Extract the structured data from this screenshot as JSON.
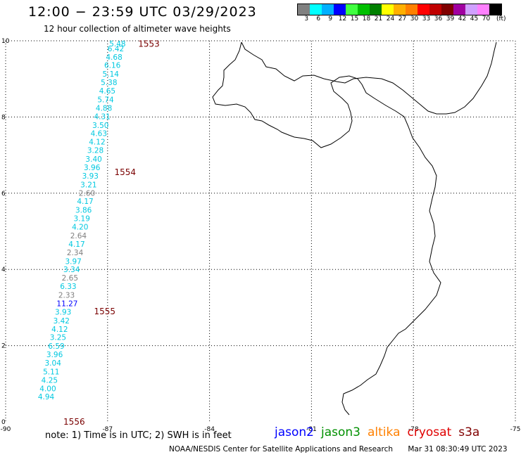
{
  "title": "12:00 − 23:59 UTC 03/29/2023",
  "subtitle": "12 hour collection of altimeter wave heights",
  "colorbar": {
    "colors": [
      "#808080",
      "#00ffff",
      "#00b0ff",
      "#0000ff",
      "#40ff40",
      "#00c000",
      "#008000",
      "#ffff00",
      "#ffb000",
      "#ff8000",
      "#ff0000",
      "#c00000",
      "#800000",
      "#a000a0",
      "#d0a0ff",
      "#ff80ff",
      "#000000"
    ],
    "labels": [
      "3",
      "6",
      "9",
      "12",
      "15",
      "18",
      "21",
      "24",
      "27",
      "30",
      "33",
      "36",
      "39",
      "42",
      "45",
      "70"
    ],
    "unit": "(ft)"
  },
  "axes": {
    "x_ticks": [
      -90,
      -87,
      -84,
      -81,
      -78,
      -75
    ],
    "y_ticks": [
      0,
      2,
      4,
      6,
      8,
      10
    ]
  },
  "passes": [
    {
      "id": "1553",
      "lon": -86.1,
      "lat": 9.92
    },
    {
      "id": "1554",
      "lon": -86.8,
      "lat": 6.55
    },
    {
      "id": "1555",
      "lon": -87.4,
      "lat": 2.9
    },
    {
      "id": "1556",
      "lon": -88.3,
      "lat": 0.0
    }
  ],
  "swh_points": [
    {
      "v": "5.48",
      "lon": -86.95,
      "lat": 9.93,
      "c": "#00c8e0"
    },
    {
      "v": "6.42",
      "lon": -87.0,
      "lat": 9.8,
      "c": "#00c8e0"
    },
    {
      "v": "4.68",
      "lon": -87.05,
      "lat": 9.58,
      "c": "#00c8e0"
    },
    {
      "v": "6.16",
      "lon": -87.1,
      "lat": 9.36,
      "c": "#00c8e0"
    },
    {
      "v": "5.14",
      "lon": -87.15,
      "lat": 9.13,
      "c": "#00c8e0"
    },
    {
      "v": "5.38",
      "lon": -87.2,
      "lat": 8.91,
      "c": "#00c8e0"
    },
    {
      "v": "4.65",
      "lon": -87.25,
      "lat": 8.69,
      "c": "#00c8e0"
    },
    {
      "v": "5.74",
      "lon": -87.3,
      "lat": 8.46,
      "c": "#00c8e0"
    },
    {
      "v": "4.88",
      "lon": -87.35,
      "lat": 8.24,
      "c": "#00c8e0"
    },
    {
      "v": "4.31",
      "lon": -87.4,
      "lat": 8.02,
      "c": "#00c8e0"
    },
    {
      "v": "3.50",
      "lon": -87.45,
      "lat": 7.79,
      "c": "#00c8e0"
    },
    {
      "v": "4.63",
      "lon": -87.5,
      "lat": 7.57,
      "c": "#00c8e0"
    },
    {
      "v": "4.12",
      "lon": -87.55,
      "lat": 7.35,
      "c": "#00c8e0"
    },
    {
      "v": "3.28",
      "lon": -87.6,
      "lat": 7.13,
      "c": "#00c8e0"
    },
    {
      "v": "3.40",
      "lon": -87.65,
      "lat": 6.9,
      "c": "#00c8e0"
    },
    {
      "v": "3.96",
      "lon": -87.7,
      "lat": 6.68,
      "c": "#00c8e0"
    },
    {
      "v": "3.93",
      "lon": -87.75,
      "lat": 6.46,
      "c": "#00c8e0"
    },
    {
      "v": "3.21",
      "lon": -87.8,
      "lat": 6.23,
      "c": "#00c8e0"
    },
    {
      "v": "2.60",
      "lon": -87.85,
      "lat": 6.01,
      "c": "#808080"
    },
    {
      "v": "4.17",
      "lon": -87.9,
      "lat": 5.79,
      "c": "#00c8e0"
    },
    {
      "v": "3.86",
      "lon": -87.95,
      "lat": 5.56,
      "c": "#00c8e0"
    },
    {
      "v": "3.19",
      "lon": -88.0,
      "lat": 5.34,
      "c": "#00c8e0"
    },
    {
      "v": "4.20",
      "lon": -88.05,
      "lat": 5.12,
      "c": "#00c8e0"
    },
    {
      "v": "2.64",
      "lon": -88.1,
      "lat": 4.89,
      "c": "#808080"
    },
    {
      "v": "4.17",
      "lon": -88.15,
      "lat": 4.67,
      "c": "#00c8e0"
    },
    {
      "v": "2.34",
      "lon": -88.2,
      "lat": 4.45,
      "c": "#808080"
    },
    {
      "v": "3.97",
      "lon": -88.25,
      "lat": 4.22,
      "c": "#00c8e0"
    },
    {
      "v": "3.34",
      "lon": -88.3,
      "lat": 4.0,
      "c": "#00c8e0"
    },
    {
      "v": "2.65",
      "lon": -88.35,
      "lat": 3.78,
      "c": "#808080"
    },
    {
      "v": "6.33",
      "lon": -88.4,
      "lat": 3.56,
      "c": "#00c8e0"
    },
    {
      "v": "2.33",
      "lon": -88.45,
      "lat": 3.33,
      "c": "#808080"
    },
    {
      "v": "11.27",
      "lon": -88.5,
      "lat": 3.11,
      "c": "#0000ff"
    },
    {
      "v": "3.93",
      "lon": -88.55,
      "lat": 2.89,
      "c": "#00c8e0"
    },
    {
      "v": "3.42",
      "lon": -88.6,
      "lat": 2.66,
      "c": "#00c8e0"
    },
    {
      "v": "4.12",
      "lon": -88.65,
      "lat": 2.44,
      "c": "#00c8e0"
    },
    {
      "v": "3.25",
      "lon": -88.7,
      "lat": 2.22,
      "c": "#00c8e0"
    },
    {
      "v": "6.59",
      "lon": -88.75,
      "lat": 1.99,
      "c": "#00c8e0"
    },
    {
      "v": "3.96",
      "lon": -88.8,
      "lat": 1.77,
      "c": "#00c8e0"
    },
    {
      "v": "3.04",
      "lon": -88.85,
      "lat": 1.55,
      "c": "#00c8e0"
    },
    {
      "v": "5.11",
      "lon": -88.9,
      "lat": 1.32,
      "c": "#00c8e0"
    },
    {
      "v": "4.25",
      "lon": -88.95,
      "lat": 1.1,
      "c": "#00c8e0"
    },
    {
      "v": "4.00",
      "lon": -89.0,
      "lat": 0.88,
      "c": "#00c8e0"
    },
    {
      "v": "4.94",
      "lon": -89.05,
      "lat": 0.66,
      "c": "#00c8e0"
    }
  ],
  "note": "note:  1) Time is in UTC;  2) SWH is in feet",
  "satellites": [
    {
      "name": "jason2",
      "color": "#0000ff"
    },
    {
      "name": "jason3",
      "color": "#009000"
    },
    {
      "name": "altika",
      "color": "#ff8000"
    },
    {
      "name": "cryosat",
      "color": "#e00000"
    },
    {
      "name": "s3a",
      "color": "#800000"
    }
  ],
  "footer": {
    "credit": "NOAA/NESDIS Center for Satellite Applications and Research",
    "timestamp": "Mar 31 08:30:49 UTC 2023"
  }
}
